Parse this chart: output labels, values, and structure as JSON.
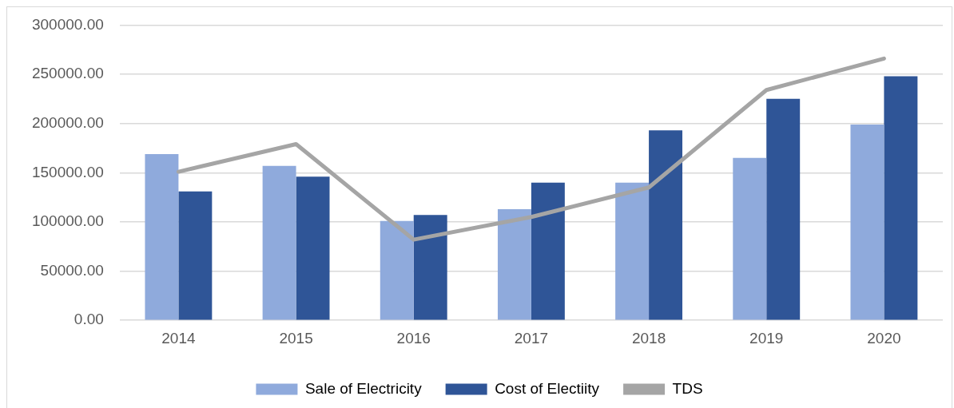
{
  "chart_data": {
    "type": "bar",
    "categories": [
      "2014",
      "2015",
      "2016",
      "2017",
      "2018",
      "2019",
      "2020"
    ],
    "series": [
      {
        "name": "Sale of Electricity",
        "color": "#8faadc",
        "values": [
          169000,
          157000,
          101000,
          113000,
          140000,
          165000,
          199000
        ]
      },
      {
        "name": "Cost of Electiity",
        "color": "#2f5597",
        "values": [
          131000,
          146000,
          107000,
          140000,
          193000,
          225000,
          248000
        ]
      },
      {
        "name": "TDS",
        "type": "line",
        "color": "#a5a5a5",
        "values": [
          151000,
          179000,
          82000,
          105000,
          135000,
          234000,
          266000
        ]
      }
    ],
    "ylim": [
      0,
      300000
    ],
    "yticks": [
      {
        "value": 0,
        "label": "0.00"
      },
      {
        "value": 50000,
        "label": "50000.00"
      },
      {
        "value": 100000,
        "label": "100000.00"
      },
      {
        "value": 150000,
        "label": "150000.00"
      },
      {
        "value": 200000,
        "label": "200000.00"
      },
      {
        "value": 250000,
        "label": "250000.00"
      },
      {
        "value": 300000,
        "label": "300000.00"
      }
    ],
    "grid": "y",
    "legend": "bottom",
    "marker": "none"
  }
}
